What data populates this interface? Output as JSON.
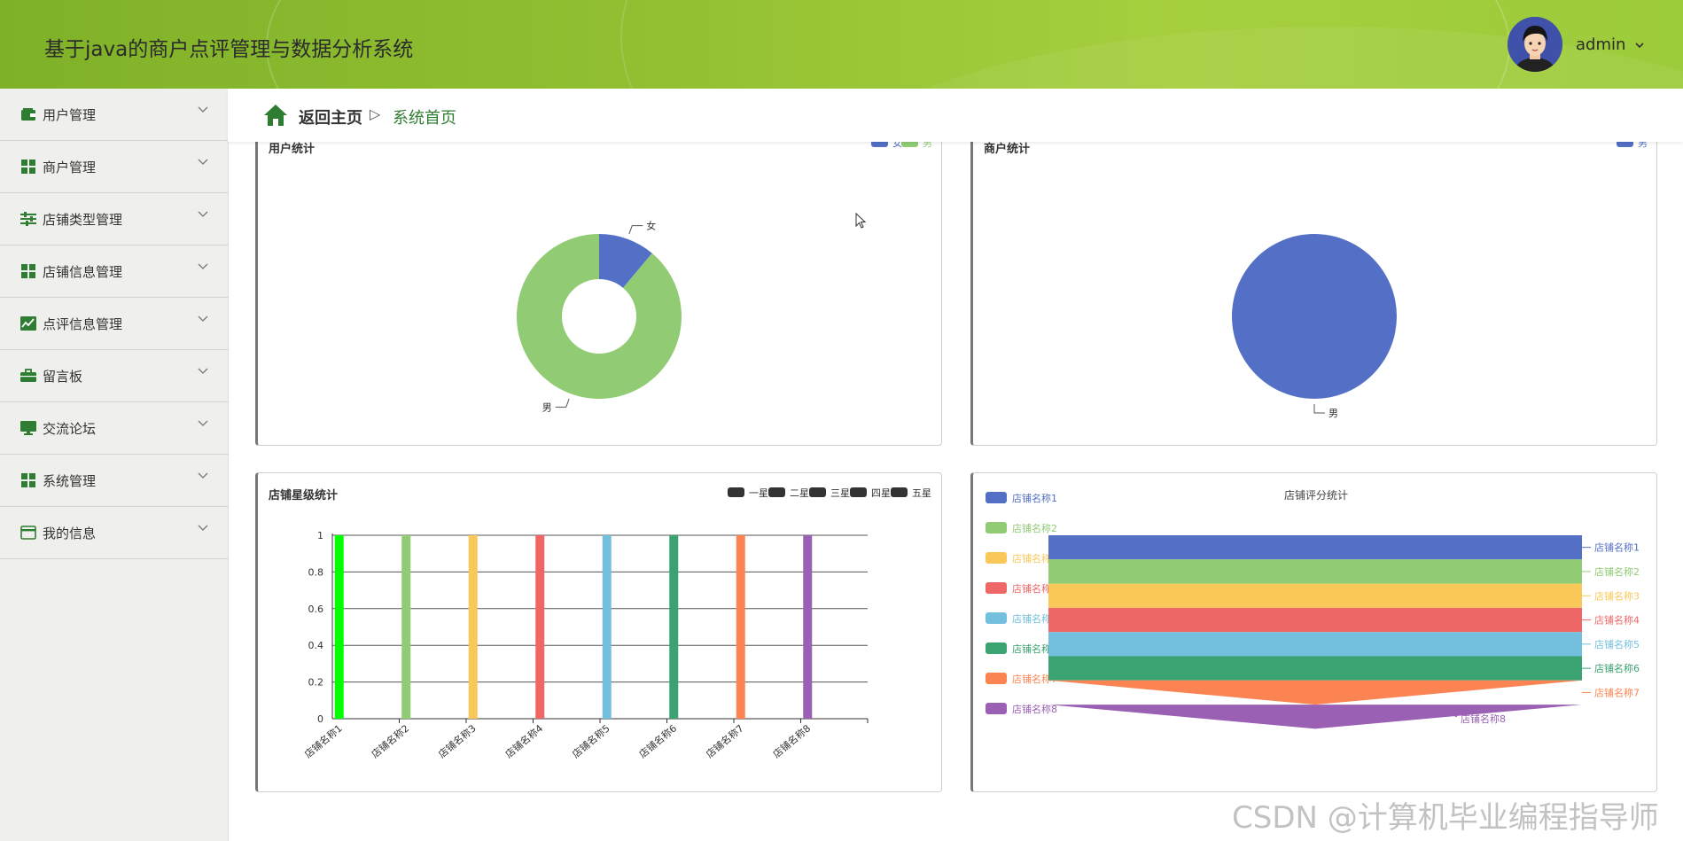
{
  "app": {
    "title": "基于java的商户点评管理与数据分析系统",
    "user": "admin"
  },
  "sidebar": {
    "items": [
      {
        "label": "用户管理",
        "icon": "wallet-icon"
      },
      {
        "label": "商户管理",
        "icon": "grid-icon"
      },
      {
        "label": "店铺类型管理",
        "icon": "sliders-icon"
      },
      {
        "label": "店铺信息管理",
        "icon": "grid-icon"
      },
      {
        "label": "点评信息管理",
        "icon": "chart-line-icon"
      },
      {
        "label": "留言板",
        "icon": "briefcase-icon"
      },
      {
        "label": "交流论坛",
        "icon": "monitor-icon"
      },
      {
        "label": "系统管理",
        "icon": "grid-icon"
      },
      {
        "label": "我的信息",
        "icon": "card-icon"
      }
    ]
  },
  "breadcrumb": {
    "home": "返回主页",
    "separator": "▷",
    "current": "系统首页"
  },
  "colors": {
    "accent": "#2e7d32",
    "header": "#93c033"
  },
  "watermark": "CSDN @计算机毕业编程指导师",
  "chart_data": [
    {
      "type": "pie",
      "variant": "donut",
      "title": "用户统计",
      "legend": [
        "女",
        "男"
      ],
      "slices": [
        {
          "name": "女",
          "value": 1,
          "color": "#5470c6"
        },
        {
          "name": "男",
          "value": 8,
          "color": "#91cc75"
        }
      ]
    },
    {
      "type": "pie",
      "title": "商户统计",
      "legend": [
        "男"
      ],
      "slices": [
        {
          "name": "男",
          "value": 1,
          "color": "#5470c6"
        }
      ]
    },
    {
      "type": "bar",
      "title": "店铺星级统计",
      "legend": [
        "一星",
        "二星",
        "三星",
        "四星",
        "五星"
      ],
      "categories": [
        "店铺名称1",
        "店铺名称2",
        "店铺名称3",
        "店铺名称4",
        "店铺名称5",
        "店铺名称6",
        "店铺名称7",
        "店铺名称8"
      ],
      "values": [
        1,
        1,
        1,
        1,
        1,
        1,
        1,
        1
      ],
      "colors": [
        "#00ff00",
        "#91cc75",
        "#fac858",
        "#ee6666",
        "#73c0de",
        "#3ba272",
        "#fc8452",
        "#9a60b4"
      ],
      "ylim": [
        0,
        1
      ],
      "yticks": [
        "0",
        "0.2",
        "0.4",
        "0.6",
        "0.8",
        "1"
      ]
    },
    {
      "type": "funnel",
      "title": "店铺评分统计",
      "legend": [
        "店铺名称1",
        "店铺名称2",
        "店铺名称3",
        "店铺名称4",
        "店铺名称5",
        "店铺名称6",
        "店铺名称7",
        "店铺名称8"
      ],
      "values": [
        1,
        1,
        1,
        1,
        1,
        1,
        1,
        0
      ],
      "colors": [
        "#5470c6",
        "#91cc75",
        "#fac858",
        "#ee6666",
        "#73c0de",
        "#3ba272",
        "#fc8452",
        "#9a60b4"
      ]
    }
  ]
}
